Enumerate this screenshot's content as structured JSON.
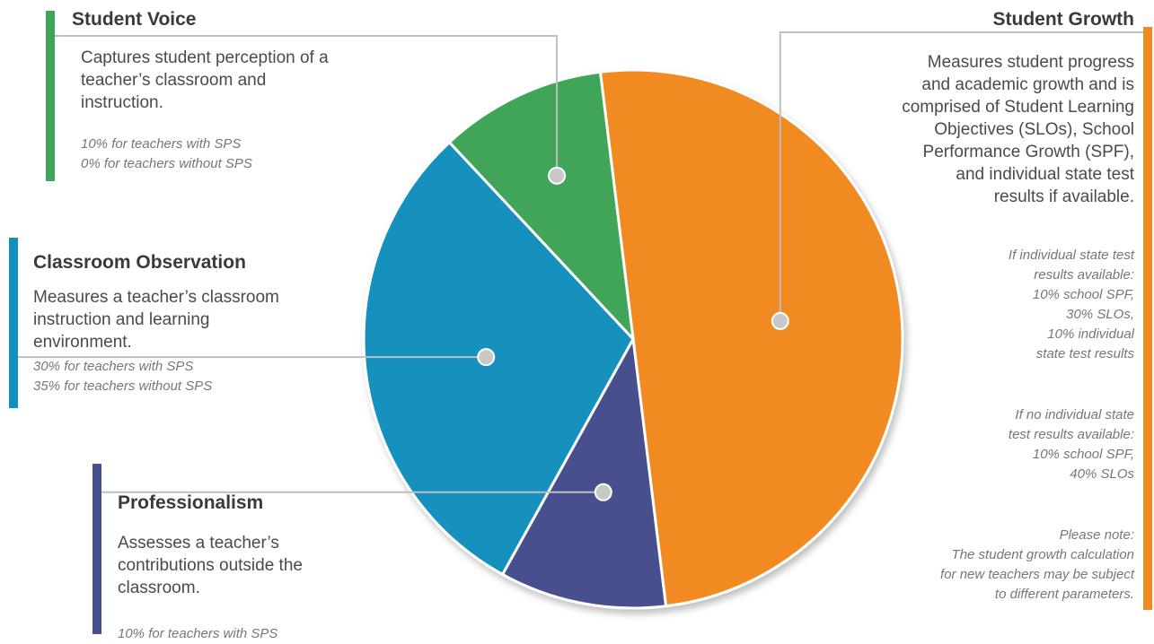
{
  "chart_data": {
    "type": "pie",
    "slices": [
      {
        "name": "Student Growth",
        "value": 50,
        "color": "#f28a24"
      },
      {
        "name": "Professionalism",
        "value": 10,
        "color": "#474f8e"
      },
      {
        "name": "Classroom Observation",
        "value": 30,
        "color": "#1490bd"
      },
      {
        "name": "Student Voice",
        "value": 10,
        "color": "#3fa558"
      }
    ]
  },
  "student_voice": {
    "title": "Student Voice",
    "description": "Captures student perception of a teacher’s classroom and instruction.",
    "notes": [
      "10% for teachers with SPS",
      "0% for teachers without SPS"
    ]
  },
  "classroom_observation": {
    "title": "Classroom Observation",
    "description": "Measures a teacher’s classroom instruction and learning environment.",
    "notes": [
      "30% for teachers with SPS",
      "35% for teachers without SPS"
    ]
  },
  "professionalism": {
    "title": "Professionalism",
    "description": "Assesses a teacher’s contributions outside the classroom.",
    "notes": [
      "10% for teachers with SPS"
    ]
  },
  "student_growth": {
    "title": "Student Growth",
    "description_lines": [
      "Measures student progress",
      "and academic growth and is",
      "comprised of Student Learning",
      "Objectives (SLOs), School",
      "Performance Growth (SPF),",
      "and individual state test",
      "results if available."
    ],
    "notes_available": [
      "If individual state test",
      "results available:",
      "10% school SPF,",
      "30% SLOs,",
      "10% individual",
      "state test results"
    ],
    "notes_unavailable": [
      "If no individual state",
      "test results available:",
      "10% school SPF,",
      "40% SLOs"
    ],
    "notes_disclaimer": [
      "Please note:",
      "The student growth calculation",
      "for new teachers may be subject",
      "to different parameters."
    ]
  }
}
